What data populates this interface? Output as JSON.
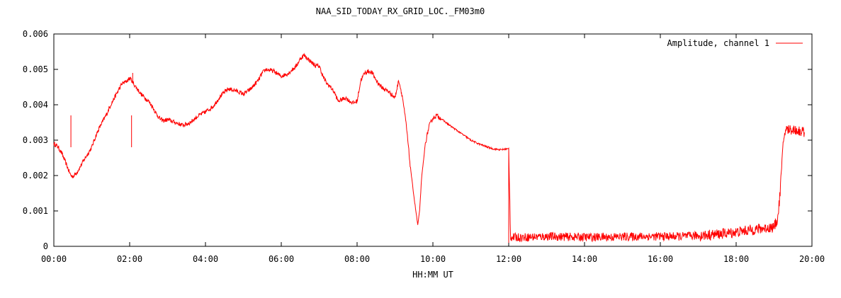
{
  "chart_data": {
    "type": "line",
    "title": "NAA_SID_TODAY_RX_GRID_LOC._FM03m0",
    "xlabel": "HH:MM UT",
    "ylabel": "",
    "xlim": [
      0,
      20
    ],
    "ylim": [
      0,
      0.006
    ],
    "x_ticks": [
      {
        "value": 0,
        "label": "00:00"
      },
      {
        "value": 2,
        "label": "02:00"
      },
      {
        "value": 4,
        "label": "04:00"
      },
      {
        "value": 6,
        "label": "06:00"
      },
      {
        "value": 8,
        "label": "08:00"
      },
      {
        "value": 10,
        "label": "10:00"
      },
      {
        "value": 12,
        "label": "12:00"
      },
      {
        "value": 14,
        "label": "14:00"
      },
      {
        "value": 16,
        "label": "16:00"
      },
      {
        "value": 18,
        "label": "18:00"
      },
      {
        "value": 20,
        "label": "20:00"
      }
    ],
    "y_ticks": [
      {
        "value": 0,
        "label": "0"
      },
      {
        "value": 0.001,
        "label": "0.001"
      },
      {
        "value": 0.002,
        "label": "0.002"
      },
      {
        "value": 0.003,
        "label": "0.003"
      },
      {
        "value": 0.004,
        "label": "0.004"
      },
      {
        "value": 0.005,
        "label": "0.005"
      },
      {
        "value": 0.006,
        "label": "0.006"
      }
    ],
    "grid": false,
    "legend_position": "top-right",
    "series": [
      {
        "name": "Amplitude, channel 1",
        "color": "#ff0000",
        "x": [
          0,
          0.1,
          0.2,
          0.3,
          0.4,
          0.45,
          0.5,
          0.6,
          0.7,
          0.8,
          0.9,
          1.0,
          1.1,
          1.2,
          1.3,
          1.4,
          1.5,
          1.6,
          1.7,
          1.8,
          1.9,
          2.0,
          2.05,
          2.1,
          2.2,
          2.3,
          2.4,
          2.5,
          2.6,
          2.7,
          2.8,
          2.9,
          3.0,
          3.2,
          3.4,
          3.5,
          3.6,
          3.8,
          4.0,
          4.2,
          4.4,
          4.6,
          4.8,
          5.0,
          5.2,
          5.4,
          5.5,
          5.6,
          5.8,
          6.0,
          6.2,
          6.4,
          6.5,
          6.6,
          6.7,
          6.8,
          6.9,
          7.0,
          7.1,
          7.2,
          7.3,
          7.4,
          7.5,
          7.6,
          7.7,
          7.8,
          7.9,
          8.0,
          8.1,
          8.2,
          8.3,
          8.4,
          8.5,
          8.6,
          8.7,
          8.8,
          8.9,
          9.0,
          9.1,
          9.2,
          9.3,
          9.4,
          9.5,
          9.55,
          9.6,
          9.65,
          9.7,
          9.8,
          9.9,
          10.0,
          10.1,
          10.2,
          10.4,
          10.6,
          10.8,
          11.0,
          11.2,
          11.4,
          11.6,
          11.8,
          11.95,
          12.0,
          12.05,
          12.5,
          13.0,
          13.5,
          14.0,
          14.5,
          15.0,
          15.5,
          16.0,
          16.5,
          17.0,
          17.5,
          18.0,
          18.5,
          19.0,
          19.1,
          19.15,
          19.2,
          19.25,
          19.3,
          19.5,
          19.7,
          19.8
        ],
        "y": [
          0.0029,
          0.00282,
          0.00265,
          0.0024,
          0.00212,
          0.002,
          0.00197,
          0.00208,
          0.00225,
          0.00245,
          0.00262,
          0.0028,
          0.0031,
          0.00335,
          0.00355,
          0.00375,
          0.004,
          0.0042,
          0.0044,
          0.0046,
          0.00465,
          0.00475,
          0.0047,
          0.0046,
          0.00445,
          0.0043,
          0.0042,
          0.0041,
          0.00395,
          0.00375,
          0.0036,
          0.00355,
          0.00358,
          0.0035,
          0.00342,
          0.00345,
          0.0035,
          0.00368,
          0.0038,
          0.00395,
          0.00425,
          0.00445,
          0.0044,
          0.0043,
          0.00445,
          0.0047,
          0.0049,
          0.005,
          0.00495,
          0.0048,
          0.0049,
          0.0051,
          0.0053,
          0.0054,
          0.0053,
          0.0052,
          0.0051,
          0.0051,
          0.0048,
          0.0046,
          0.0045,
          0.00435,
          0.0041,
          0.00415,
          0.0042,
          0.0041,
          0.00405,
          0.0041,
          0.0047,
          0.0049,
          0.00495,
          0.0049,
          0.0047,
          0.00455,
          0.00445,
          0.0044,
          0.0043,
          0.0042,
          0.0047,
          0.0042,
          0.0034,
          0.0023,
          0.0014,
          0.001,
          0.0006,
          0.001,
          0.0019,
          0.0029,
          0.0034,
          0.00362,
          0.0037,
          0.00362,
          0.00345,
          0.0033,
          0.00315,
          0.003,
          0.0029,
          0.00282,
          0.00275,
          0.00273,
          0.00275,
          0.00275,
          0.00025,
          0.00026,
          0.00028,
          0.00027,
          0.00026,
          0.00026,
          0.00027,
          0.00028,
          0.00028,
          0.00028,
          0.0003,
          0.00034,
          0.0004,
          0.00048,
          0.00054,
          0.0008,
          0.0014,
          0.0022,
          0.003,
          0.0033,
          0.0033,
          0.00325,
          0.00322
        ]
      }
    ]
  }
}
